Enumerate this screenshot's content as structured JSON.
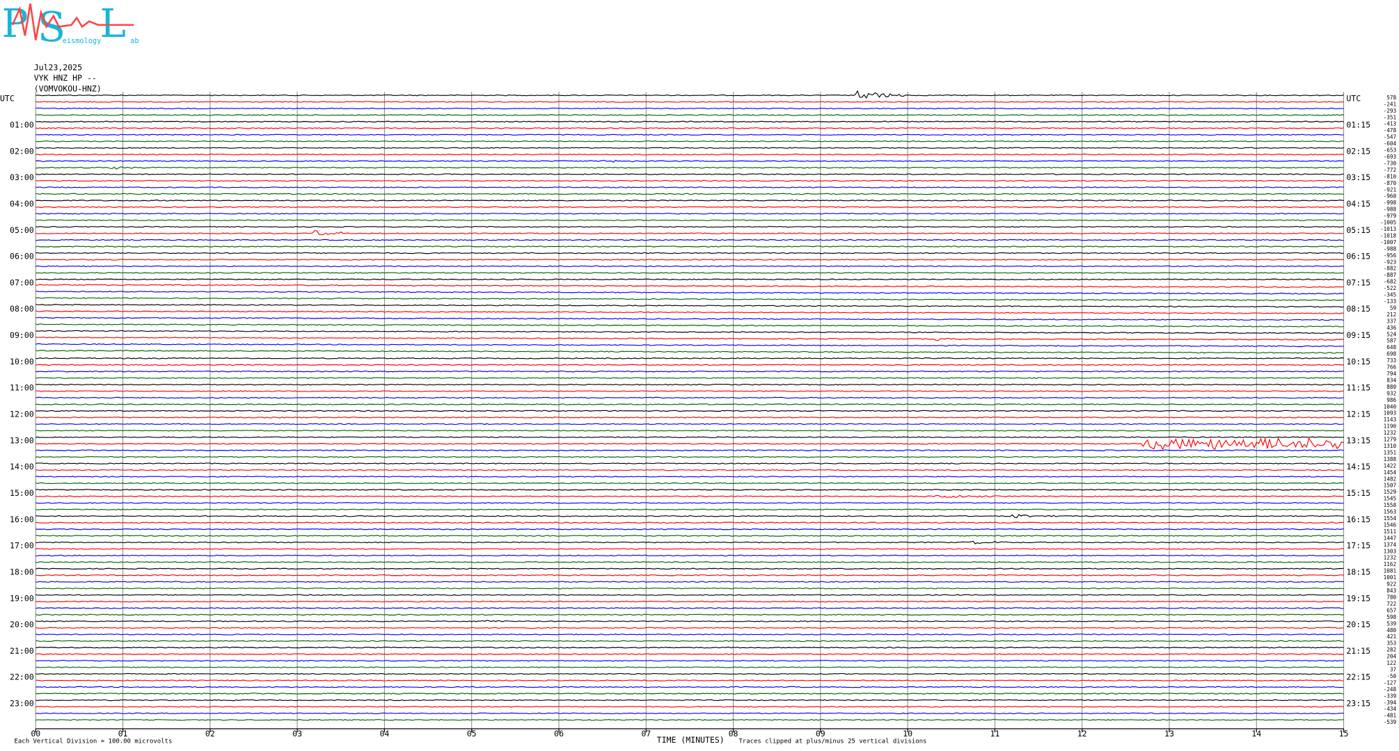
{
  "logo": {
    "letters": [
      "P",
      "S",
      "L"
    ],
    "small": [
      "eismology",
      "ab"
    ]
  },
  "header": [
    "Jul23,2025",
    "VYK HNZ HP --",
    "(VOMVOKOU-HNZ)"
  ],
  "chart_data": {
    "type": "helicorder",
    "left_labels": [
      "UTC",
      "01:00",
      "02:00",
      "03:00",
      "04:00",
      "05:00",
      "06:00",
      "07:00",
      "08:00",
      "09:00",
      "10:00",
      "11:00",
      "12:00",
      "13:00",
      "14:00",
      "15:00",
      "16:00",
      "17:00",
      "18:00",
      "19:00",
      "20:00",
      "21:00",
      "22:00",
      "23:00"
    ],
    "right_labels": [
      "UTC",
      "01:15",
      "02:15",
      "03:15",
      "04:15",
      "05:15",
      "06:15",
      "07:15",
      "08:15",
      "09:15",
      "10:15",
      "11:15",
      "12:15",
      "13:15",
      "14:15",
      "15:15",
      "16:15",
      "17:15",
      "18:15",
      "19:15",
      "20:15",
      "21:15",
      "22:15",
      "23:15"
    ],
    "offsets": [
      578,
      -241,
      -293,
      -351,
      -413,
      -478,
      -547,
      -604,
      -653,
      -693,
      -730,
      -772,
      -810,
      -870,
      -921,
      -960,
      -998,
      -988,
      -979,
      -1005,
      -1013,
      -1018,
      -1007,
      -988,
      -956,
      -923,
      -882,
      -887,
      -682,
      -522,
      -345,
      -133,
      59,
      212,
      337,
      436,
      524,
      587,
      648,
      698,
      733,
      766,
      794,
      834,
      880,
      932,
      986,
      1040,
      1093,
      1143,
      1190,
      1232,
      1279,
      1310,
      1351,
      1388,
      1422,
      1454,
      1482,
      1507,
      1529,
      1545,
      1558,
      1563,
      1554,
      1546,
      1511,
      1447,
      1374,
      1303,
      1232,
      1162,
      1081,
      1001,
      922,
      843,
      780,
      722,
      657,
      598,
      539,
      480,
      421,
      353,
      282,
      204,
      122,
      37,
      -50,
      -127,
      -248,
      -339,
      -394,
      -434,
      -481,
      -539
    ],
    "trace_colors": [
      "#000000",
      "#ff0000",
      "#0000ff",
      "#006400"
    ],
    "xlim": [
      0,
      15
    ],
    "xticks": [
      {
        "value": 0,
        "label": "00"
      },
      {
        "value": 1,
        "label": "01"
      },
      {
        "value": 2,
        "label": "02"
      },
      {
        "value": 3,
        "label": "03"
      },
      {
        "value": 4,
        "label": "04"
      },
      {
        "value": 5,
        "label": "05"
      },
      {
        "value": 6,
        "label": "06"
      },
      {
        "value": 7,
        "label": "07"
      },
      {
        "value": 8,
        "label": "08"
      },
      {
        "value": 9,
        "label": "09"
      },
      {
        "value": 10,
        "label": "10"
      },
      {
        "value": 11,
        "label": "11"
      },
      {
        "value": 12,
        "label": "12"
      },
      {
        "value": 13,
        "label": "13"
      },
      {
        "value": 14,
        "label": "14"
      },
      {
        "value": 15,
        "label": "15"
      }
    ],
    "xlabel": "TIME (MINUTES)",
    "scale_note": "Each Vertical Division =  100.00 microvolts",
    "clip_note": "Traces clipped at plus/minus 25 vertical divisions",
    "grid": true
  }
}
